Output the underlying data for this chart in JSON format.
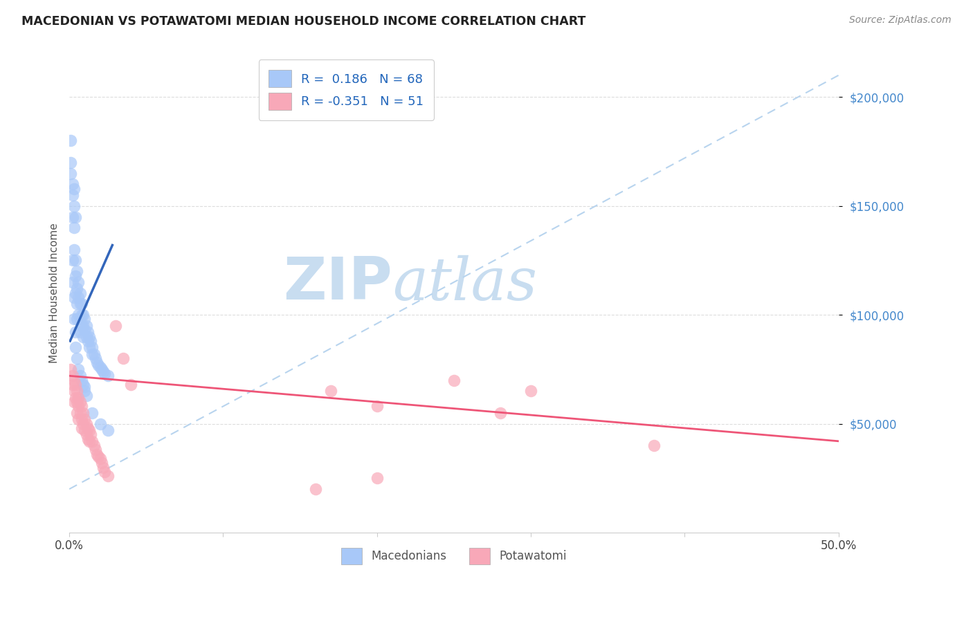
{
  "title": "MACEDONIAN VS POTAWATOMI MEDIAN HOUSEHOLD INCOME CORRELATION CHART",
  "source": "Source: ZipAtlas.com",
  "ylabel": "Median Household Income",
  "y_tick_labels": [
    "$50,000",
    "$100,000",
    "$150,000",
    "$200,000"
  ],
  "y_tick_values": [
    50000,
    100000,
    150000,
    200000
  ],
  "legend_entry1": "R =  0.186   N = 68",
  "legend_entry2": "R = -0.351   N = 51",
  "legend_label1": "Macedonians",
  "legend_label2": "Potawatomi",
  "mac_color": "#a8c8f8",
  "pot_color": "#f8a8b8",
  "mac_line_color": "#3366bb",
  "pot_line_color": "#ee5577",
  "dashed_line_color": "#b8d4ee",
  "watermark_zip": "ZIP",
  "watermark_atlas": "atlas",
  "watermark_color_zip": "#c8ddf0",
  "watermark_color_atlas": "#c8ddf0",
  "xlim": [
    0.0,
    0.5
  ],
  "ylim": [
    0,
    220000
  ],
  "mac_x": [
    0.001,
    0.001,
    0.002,
    0.002,
    0.002,
    0.003,
    0.003,
    0.003,
    0.003,
    0.004,
    0.004,
    0.004,
    0.004,
    0.005,
    0.005,
    0.005,
    0.005,
    0.006,
    0.006,
    0.006,
    0.007,
    0.007,
    0.007,
    0.007,
    0.008,
    0.008,
    0.008,
    0.009,
    0.009,
    0.009,
    0.01,
    0.01,
    0.011,
    0.011,
    0.012,
    0.012,
    0.013,
    0.013,
    0.014,
    0.015,
    0.015,
    0.016,
    0.017,
    0.018,
    0.019,
    0.02,
    0.021,
    0.022,
    0.023,
    0.025,
    0.001,
    0.002,
    0.002,
    0.003,
    0.003,
    0.004,
    0.004,
    0.005,
    0.006,
    0.007,
    0.008,
    0.009,
    0.01,
    0.01,
    0.011,
    0.015,
    0.02,
    0.025
  ],
  "mac_y": [
    170000,
    165000,
    160000,
    155000,
    145000,
    158000,
    150000,
    140000,
    130000,
    145000,
    125000,
    118000,
    110000,
    120000,
    112000,
    105000,
    98000,
    115000,
    108000,
    100000,
    110000,
    105000,
    98000,
    92000,
    105000,
    100000,
    95000,
    100000,
    95000,
    90000,
    98000,
    93000,
    95000,
    90000,
    92000,
    88000,
    90000,
    85000,
    88000,
    85000,
    82000,
    82000,
    80000,
    78000,
    77000,
    76000,
    75000,
    74000,
    73000,
    72000,
    180000,
    125000,
    115000,
    108000,
    98000,
    92000,
    85000,
    80000,
    75000,
    72000,
    70000,
    68000,
    67000,
    65000,
    63000,
    55000,
    50000,
    47000
  ],
  "pot_x": [
    0.001,
    0.002,
    0.002,
    0.003,
    0.003,
    0.003,
    0.004,
    0.004,
    0.005,
    0.005,
    0.005,
    0.006,
    0.006,
    0.006,
    0.007,
    0.007,
    0.008,
    0.008,
    0.008,
    0.009,
    0.009,
    0.01,
    0.01,
    0.011,
    0.011,
    0.012,
    0.012,
    0.013,
    0.013,
    0.014,
    0.015,
    0.016,
    0.017,
    0.018,
    0.019,
    0.02,
    0.021,
    0.022,
    0.023,
    0.025,
    0.03,
    0.035,
    0.04,
    0.17,
    0.2,
    0.25,
    0.3,
    0.38,
    0.16,
    0.2,
    0.28
  ],
  "pot_y": [
    75000,
    72000,
    68000,
    70000,
    65000,
    60000,
    68000,
    62000,
    65000,
    60000,
    55000,
    62000,
    58000,
    52000,
    60000,
    55000,
    58000,
    52000,
    48000,
    55000,
    50000,
    52000,
    47000,
    50000,
    45000,
    48000,
    43000,
    47000,
    42000,
    45000,
    42000,
    40000,
    38000,
    36000,
    35000,
    34000,
    32000,
    30000,
    28000,
    26000,
    95000,
    80000,
    68000,
    65000,
    58000,
    70000,
    65000,
    40000,
    20000,
    25000,
    55000
  ]
}
